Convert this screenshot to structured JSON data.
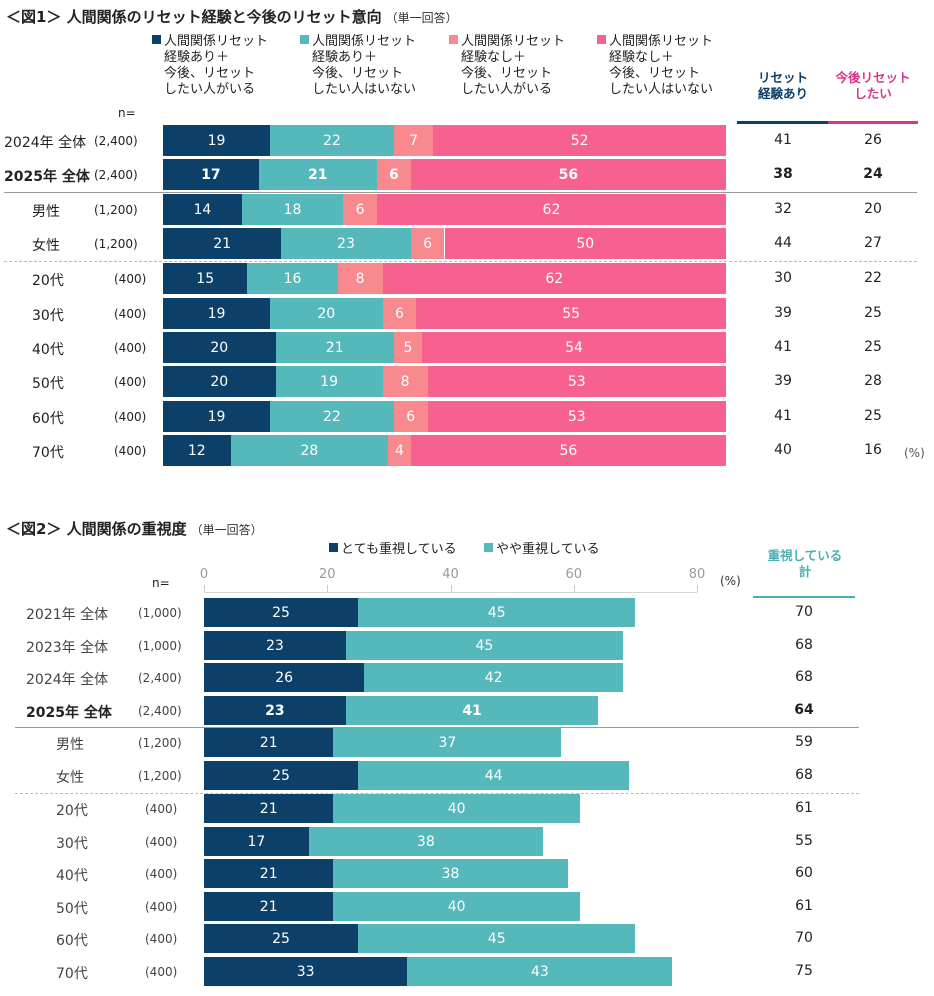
{
  "colors": {
    "dark_navy": "#0d4068",
    "teal": "#55b8bb",
    "light_pink": "#f7898f",
    "pink": "#f6618f",
    "magenta_header": "#d9348a",
    "teal_header": "#4ab0b5"
  },
  "chart_data": [
    {
      "type": "bar",
      "orientation": "horizontal",
      "stacked": true,
      "title": "＜図1＞ 人間関係のリセット経験と今後のリセット意向",
      "subtitle": "（単一回答）",
      "n_label": "n=",
      "unit_label": "(%)",
      "categories": [
        "2024年 全体",
        "2025年 全体",
        "男性",
        "女性",
        "20代",
        "30代",
        "40代",
        "50代",
        "60代",
        "70代"
      ],
      "n_values": [
        "(2,400)",
        "(2,400)",
        "(1,200)",
        "(1,200)",
        "(400)",
        "(400)",
        "(400)",
        "(400)",
        "(400)",
        "(400)"
      ],
      "bold_rows": [
        1
      ],
      "series": [
        {
          "name": "人間関係リセット\n経験あり＋\n今後、リセット\nしたい人がいる",
          "color": "#0d4068",
          "values": [
            19,
            17,
            14,
            21,
            15,
            19,
            20,
            20,
            19,
            12
          ]
        },
        {
          "name": "人間関係リセット\n経験あり＋\n今後、リセット\nしたい人はいない",
          "color": "#55b8bb",
          "values": [
            22,
            21,
            18,
            23,
            16,
            20,
            21,
            19,
            22,
            28
          ]
        },
        {
          "name": "人間関係リセット\n経験なし＋\n今後、リセット\nしたい人がいる",
          "color": "#f7898f",
          "values": [
            7,
            6,
            6,
            6,
            8,
            6,
            5,
            8,
            6,
            4
          ]
        },
        {
          "name": "人間関係リセット\n経験なし＋\n今後、リセット\nしたい人はいない",
          "color": "#f6618f",
          "values": [
            52,
            56,
            62,
            50,
            62,
            55,
            54,
            53,
            53,
            56
          ]
        }
      ],
      "summary_columns": [
        {
          "header": "リセット\n経験あり",
          "color": "#0d4068",
          "values": [
            41,
            38,
            32,
            44,
            30,
            39,
            41,
            39,
            41,
            40
          ]
        },
        {
          "header": "今後リセット\nしたい",
          "color": "#d9348a",
          "values": [
            26,
            24,
            20,
            27,
            22,
            25,
            25,
            28,
            25,
            16
          ]
        }
      ],
      "xlim": [
        0,
        100
      ],
      "grid": false,
      "legend_position": "top"
    },
    {
      "type": "bar",
      "orientation": "horizontal",
      "stacked": true,
      "title": "＜図2＞ 人間関係の重視度",
      "subtitle": "（単一回答）",
      "n_label": "n=",
      "unit_label": "(%)",
      "categories": [
        "2021年 全体",
        "2023年 全体",
        "2024年 全体",
        "2025年 全体",
        "男性",
        "女性",
        "20代",
        "30代",
        "40代",
        "50代",
        "60代",
        "70代"
      ],
      "n_values": [
        "(1,000)",
        "(1,000)",
        "(2,400)",
        "(2,400)",
        "(1,200)",
        "(1,200)",
        "(400)",
        "(400)",
        "(400)",
        "(400)",
        "(400)",
        "(400)"
      ],
      "bold_rows": [
        3
      ],
      "series": [
        {
          "name": "とても重視している",
          "color": "#0d4068",
          "values": [
            25,
            23,
            26,
            23,
            21,
            25,
            21,
            17,
            21,
            21,
            25,
            33
          ]
        },
        {
          "name": "やや重視している",
          "color": "#55b8bb",
          "values": [
            45,
            45,
            42,
            41,
            37,
            44,
            40,
            38,
            38,
            40,
            45,
            43
          ]
        }
      ],
      "summary_columns": [
        {
          "header": "重視している\n計",
          "color": "#4ab0b5",
          "values": [
            70,
            68,
            68,
            64,
            59,
            68,
            61,
            55,
            60,
            61,
            70,
            75
          ]
        }
      ],
      "xticks": [
        0,
        20,
        40,
        60,
        80
      ],
      "xlim": [
        0,
        80
      ],
      "grid": false,
      "legend_position": "top"
    }
  ]
}
